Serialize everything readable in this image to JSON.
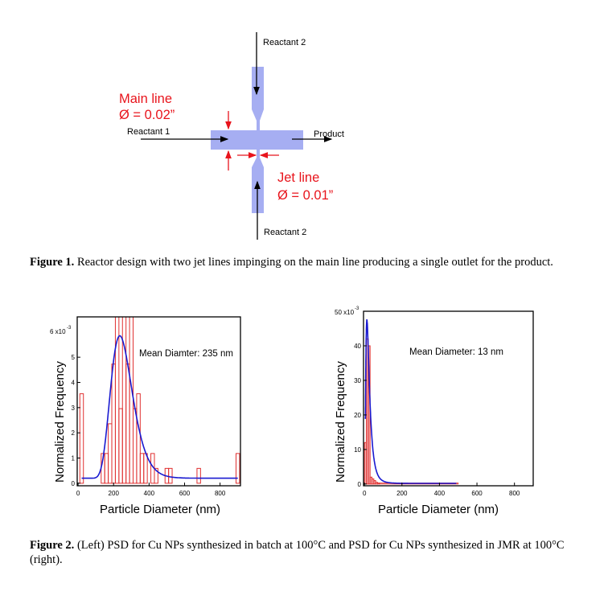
{
  "figure1": {
    "labels": {
      "reactant2_top": "Reactant 2",
      "reactant2_bottom": "Reactant 2",
      "reactant1": "Reactant 1",
      "product": "Product",
      "main_line": "Main line",
      "main_line_dia": "Ø = 0.02”",
      "jet_line": "Jet line",
      "jet_line_dia": "Ø = 0.01”"
    },
    "colors": {
      "channel": "#a6aef2",
      "annotation": "#e8141c"
    },
    "caption_label": "Figure 1.",
    "caption_text": " Reactor design with two jet lines impinging on the main line producing a single outlet for the product."
  },
  "figure2": {
    "caption_label": "Figure 2.",
    "caption_text": " (Left) PSD for Cu NPs synthesized in batch at 100°C and PSD for Cu NPs synthesized in JMR at 100°C (right)."
  },
  "chart_data": [
    {
      "type": "bar",
      "title": "",
      "annotation": "Mean Diamter: 235 nm",
      "xlabel": "Particle Diameter (nm)",
      "ylabel": "Normalized Frequency",
      "y_multiplier_label": "6 x10",
      "y_exponent": "-3",
      "xlim": [
        -5,
        915
      ],
      "ylim": [
        -0.1,
        6.6
      ],
      "xticks": [
        0,
        200,
        400,
        600,
        800
      ],
      "yticks": [
        0,
        1,
        2,
        3,
        4,
        5
      ],
      "bin_width": 20,
      "bins": [
        {
          "x": 20,
          "y": 3.55
        },
        {
          "x": 140,
          "y": 1.18
        },
        {
          "x": 160,
          "y": 1.18
        },
        {
          "x": 180,
          "y": 2.36
        },
        {
          "x": 200,
          "y": 4.73
        },
        {
          "x": 220,
          "y": 6.6
        },
        {
          "x": 240,
          "y": 2.96
        },
        {
          "x": 260,
          "y": 6.6
        },
        {
          "x": 280,
          "y": 4.73
        },
        {
          "x": 300,
          "y": 6.6
        },
        {
          "x": 320,
          "y": 2.96
        },
        {
          "x": 340,
          "y": 3.55
        },
        {
          "x": 360,
          "y": 1.18
        },
        {
          "x": 380,
          "y": 1.18
        },
        {
          "x": 420,
          "y": 1.18
        },
        {
          "x": 440,
          "y": 0.59
        },
        {
          "x": 500,
          "y": 0.59
        },
        {
          "x": 520,
          "y": 0.59
        },
        {
          "x": 680,
          "y": 0.59
        },
        {
          "x": 900,
          "y": 1.18
        }
      ],
      "fit": {
        "type": "lognormal",
        "peak_x": 235,
        "peak_y": 5.85,
        "baseline": 0.2,
        "sigma": 0.26,
        "x_range": [
          20,
          900
        ]
      },
      "colors": {
        "bars": "#e03030",
        "fit": "#1a1ad0"
      }
    },
    {
      "type": "bar",
      "title": "",
      "annotation": "Mean Diameter: 13 nm",
      "xlabel": "Particle Diameter (nm)",
      "ylabel": "Normalized Frequency",
      "y_multiplier_label": "50 x10",
      "y_exponent": "-3",
      "xlim": [
        -5,
        900
      ],
      "ylim": [
        -0.5,
        50
      ],
      "xticks": [
        0,
        200,
        400,
        600,
        800
      ],
      "yticks": [
        0,
        10,
        20,
        30,
        40
      ],
      "bin_width": 10,
      "bins": [
        {
          "x": 5,
          "y": 12
        },
        {
          "x": 15,
          "y": 42
        },
        {
          "x": 25,
          "y": 40
        },
        {
          "x": 35,
          "y": 2
        },
        {
          "x": 45,
          "y": 1.5
        },
        {
          "x": 55,
          "y": 1
        },
        {
          "x": 65,
          "y": 0.5
        },
        {
          "x": 75,
          "y": 0.3
        }
      ],
      "tail_baseline": {
        "from": 80,
        "to": 500,
        "y": 0.3
      },
      "fit": {
        "type": "lognormal",
        "peak_x": 13,
        "peak_y": 47.5,
        "baseline": 0.2,
        "sigma": 0.7,
        "x_range": [
          5,
          490
        ]
      },
      "colors": {
        "bars": "#e03030",
        "fit": "#1a1ad0"
      }
    }
  ]
}
